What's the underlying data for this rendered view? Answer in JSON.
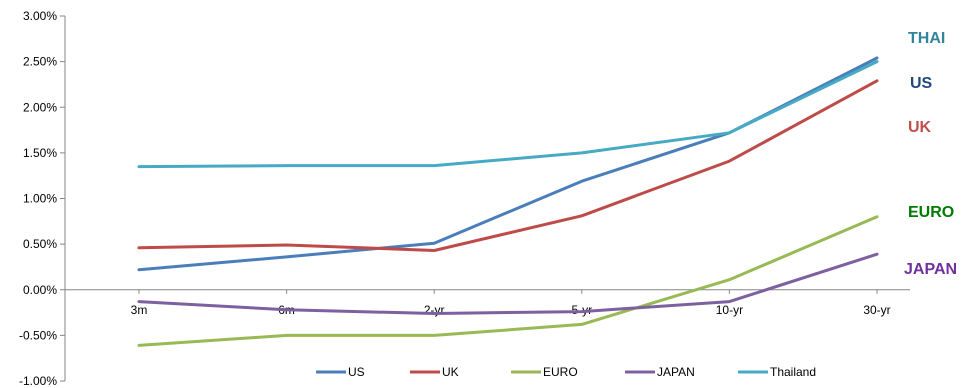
{
  "chart_data": {
    "type": "line",
    "title": "",
    "xlabel": "",
    "ylabel": "",
    "categories": [
      "3m",
      "6m",
      "2-yr",
      "5-yr",
      "10-yr",
      "30-yr"
    ],
    "y_ticks": [
      "3.00%",
      "2.50%",
      "2.00%",
      "1.50%",
      "1.00%",
      "0.50%",
      "0.00%",
      "-0.50%",
      "-1.00%"
    ],
    "ylim": [
      -1.0,
      3.0
    ],
    "grid": false,
    "legend_position": "bottom",
    "series": [
      {
        "name": "US",
        "color": "#4A7EBB",
        "values": [
          0.22,
          0.36,
          0.51,
          1.19,
          1.72,
          2.54
        ]
      },
      {
        "name": "UK",
        "color": "#BE4B48",
        "values": [
          0.46,
          0.49,
          0.43,
          0.81,
          1.41,
          2.29
        ]
      },
      {
        "name": "EURO",
        "color": "#98B954",
        "values": [
          -0.61,
          -0.5,
          -0.5,
          -0.38,
          0.11,
          0.8
        ]
      },
      {
        "name": "JAPAN",
        "color": "#7D60A0",
        "values": [
          -0.13,
          -0.22,
          -0.26,
          -0.24,
          -0.13,
          0.39
        ]
      },
      {
        "name": "Thailand",
        "color": "#46AAC5",
        "values": [
          1.35,
          1.36,
          1.36,
          1.5,
          1.72,
          2.5
        ]
      }
    ],
    "end_labels": [
      {
        "text": "THAI",
        "color": "#31849B"
      },
      {
        "text": "US",
        "color": "#1F497D"
      },
      {
        "text": "UK",
        "color": "#C0504D"
      },
      {
        "text": "EURO",
        "color": "#007A00"
      },
      {
        "text": "JAPAN",
        "color": "#7030A0"
      }
    ]
  }
}
